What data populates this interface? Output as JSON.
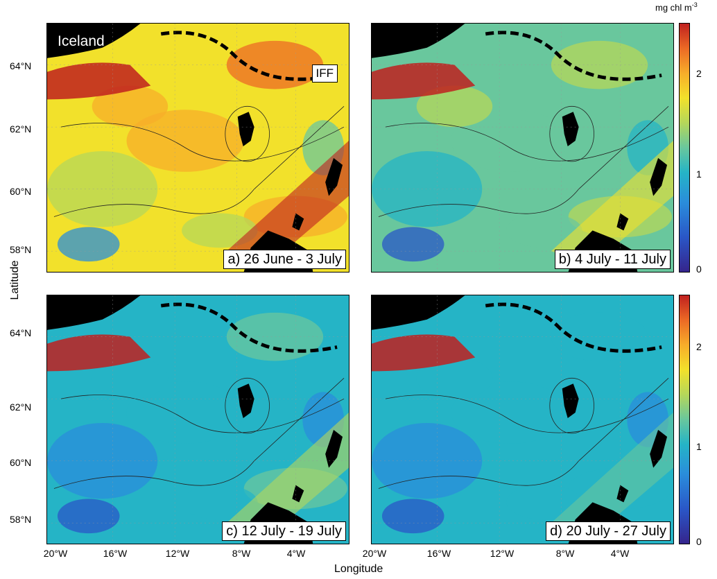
{
  "panels": [
    {
      "id": "a",
      "label": "a) 26 June - 3 July",
      "level": 0.85
    },
    {
      "id": "b",
      "label": "b)  4 July - 11 July",
      "level": 0.55
    },
    {
      "id": "c",
      "label": "c) 12 July - 19 July",
      "level": 0.35
    },
    {
      "id": "d",
      "label": "d) 20 July - 27 July",
      "level": 0.3
    }
  ],
  "annotations": {
    "iceland": "Iceland",
    "front": "IFF"
  },
  "axes": {
    "x_title": "Longitude",
    "y_title": "Latitude",
    "lat_ticks": [
      "64°N",
      "62°N",
      "60°N",
      "58°N"
    ],
    "lon_ticks": [
      "20°W",
      "16°W",
      "12°W",
      "8°W",
      "4°W"
    ]
  },
  "colorbar": {
    "unit": "mg chl m",
    "unit_exp": "-3",
    "ticks": [
      "2",
      "1",
      "0"
    ],
    "min": 0,
    "max": 2.6,
    "colors": [
      "#35258c",
      "#2a57c7",
      "#2a8ddb",
      "#25b4c6",
      "#69c79d",
      "#b5d75a",
      "#f2e12b",
      "#f7ad2a",
      "#ec6a25",
      "#c0201f"
    ]
  },
  "land_color": "#000000"
}
